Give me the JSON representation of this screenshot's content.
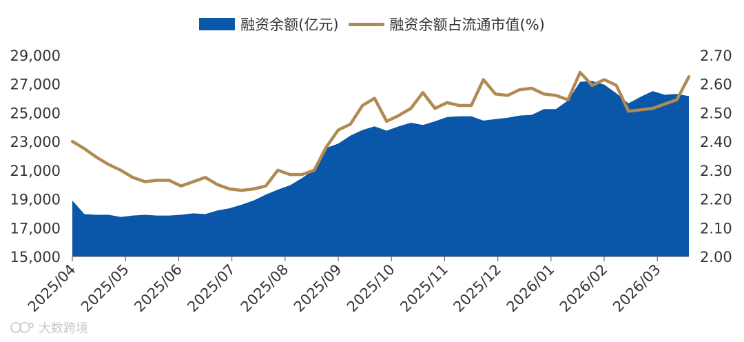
{
  "chart_data": {
    "type": "area",
    "x_labels": [
      "2025/04",
      "2025/05",
      "2025/06",
      "2025/07",
      "2025/08",
      "2025/09",
      "2025/10",
      "2025/11",
      "2025/12",
      "2026/01",
      "2026/02",
      "2026/03"
    ],
    "y_left": {
      "min": 15000,
      "max": 29000,
      "ticks": [
        "15,000",
        "17,000",
        "19,000",
        "21,000",
        "23,000",
        "25,000",
        "27,000",
        "29,000"
      ]
    },
    "y_right": {
      "min": 2.0,
      "max": 2.7,
      "ticks": [
        "2.00",
        "2.10",
        "2.20",
        "2.30",
        "2.40",
        "2.50",
        "2.60",
        "2.70"
      ]
    },
    "series": [
      {
        "name": "融资余额(亿元)",
        "type": "area",
        "axis": "left",
        "color": "#0a56a8",
        "values": [
          18900,
          17950,
          17900,
          17900,
          17750,
          17850,
          17900,
          17850,
          17850,
          17900,
          18000,
          17950,
          18200,
          18350,
          18600,
          18900,
          19300,
          19650,
          19950,
          20450,
          21050,
          22550,
          22850,
          23400,
          23800,
          24050,
          23750,
          24050,
          24300,
          24150,
          24400,
          24700,
          24750,
          24750,
          24450,
          24550,
          24650,
          24800,
          24850,
          25250,
          25250,
          25850,
          27150,
          27200,
          26950,
          26350,
          25650,
          26100,
          26500,
          26250,
          26300,
          26150
        ]
      },
      {
        "name": "融资余额占流通市值(%)",
        "type": "line",
        "axis": "right",
        "color": "#b08a52",
        "values": [
          2.4,
          2.375,
          2.345,
          2.32,
          2.3,
          2.275,
          2.26,
          2.265,
          2.265,
          2.245,
          2.26,
          2.275,
          2.25,
          2.235,
          2.23,
          2.235,
          2.245,
          2.3,
          2.285,
          2.285,
          2.3,
          2.38,
          2.44,
          2.46,
          2.525,
          2.55,
          2.47,
          2.49,
          2.515,
          2.57,
          2.515,
          2.535,
          2.525,
          2.525,
          2.615,
          2.565,
          2.56,
          2.58,
          2.585,
          2.565,
          2.56,
          2.545,
          2.64,
          2.595,
          2.615,
          2.595,
          2.505,
          2.51,
          2.515,
          2.53,
          2.545,
          2.625
        ]
      }
    ],
    "legend": "top-center"
  },
  "watermark": {
    "text": "大数跨境"
  }
}
